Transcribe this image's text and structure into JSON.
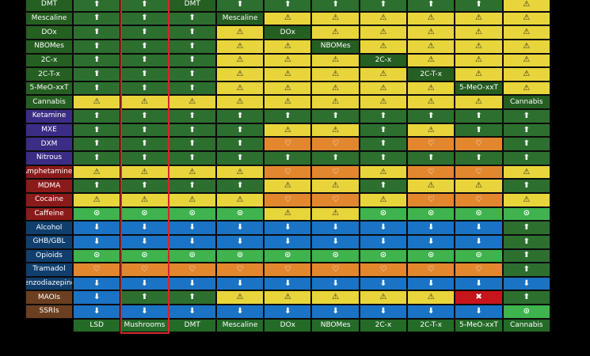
{
  "colors": {
    "low_synergy": "#2d6f2f",
    "caution": "#e8d53b",
    "unsafe": "#e2872e",
    "decrease": "#1a73c4",
    "low_no_synergy": "#3fb34d",
    "dangerous": "#c7151d",
    "self_cell": "#265f22",
    "highlight": "#d8262b"
  },
  "symbols": {
    "U": "⬆",
    "A": "⚠",
    "H": "♡",
    "D": "⬇",
    "O": "⊙",
    "X": "✖"
  },
  "columns": [
    "LSD",
    "Mushrooms",
    "DMT",
    "Mescaline",
    "DOx",
    "NBOMes",
    "2C-x",
    "2C-T-x",
    "5-MeO-xxT",
    "Cannabis"
  ],
  "highlighted_column": "Mushrooms",
  "rows": [
    {
      "label": "DMT",
      "label_color": "#265f22",
      "cells": [
        "U",
        "U",
        "S",
        "U",
        "U",
        "U",
        "U",
        "U",
        "U",
        "A"
      ]
    },
    {
      "label": "Mescaline",
      "label_color": "#265f22",
      "cells": [
        "U",
        "U",
        "U",
        "S",
        "A",
        "A",
        "A",
        "A",
        "A",
        "A"
      ]
    },
    {
      "label": "DOx",
      "label_color": "#265f22",
      "cells": [
        "U",
        "U",
        "U",
        "A",
        "S",
        "A",
        "A",
        "A",
        "A",
        "A"
      ]
    },
    {
      "label": "NBOMes",
      "label_color": "#265f22",
      "cells": [
        "U",
        "U",
        "U",
        "A",
        "A",
        "S",
        "A",
        "A",
        "A",
        "A"
      ]
    },
    {
      "label": "2C-x",
      "label_color": "#265f22",
      "cells": [
        "U",
        "U",
        "U",
        "A",
        "A",
        "A",
        "S",
        "A",
        "A",
        "A"
      ]
    },
    {
      "label": "2C-T-x",
      "label_color": "#265f22",
      "cells": [
        "U",
        "U",
        "U",
        "A",
        "A",
        "A",
        "A",
        "S",
        "A",
        "A"
      ]
    },
    {
      "label": "5-MeO-xxT",
      "label_color": "#265f22",
      "cells": [
        "U",
        "U",
        "U",
        "A",
        "A",
        "A",
        "A",
        "A",
        "S",
        "A"
      ]
    },
    {
      "label": "Cannabis",
      "label_color": "#265f22",
      "cells": [
        "A",
        "A",
        "A",
        "A",
        "A",
        "A",
        "A",
        "A",
        "A",
        "S"
      ]
    },
    {
      "label": "Ketamine",
      "label_color": "#3b2d86",
      "cells": [
        "U",
        "U",
        "U",
        "U",
        "U",
        "U",
        "U",
        "U",
        "U",
        "U"
      ]
    },
    {
      "label": "MXE",
      "label_color": "#3b2d86",
      "cells": [
        "U",
        "U",
        "U",
        "U",
        "A",
        "A",
        "U",
        "A",
        "U",
        "U"
      ]
    },
    {
      "label": "DXM",
      "label_color": "#3b2d86",
      "cells": [
        "U",
        "U",
        "U",
        "U",
        "H",
        "H",
        "U",
        "H",
        "H",
        "U"
      ]
    },
    {
      "label": "Nitrous",
      "label_color": "#3b2d86",
      "cells": [
        "U",
        "U",
        "U",
        "U",
        "U",
        "U",
        "U",
        "U",
        "U",
        "U"
      ]
    },
    {
      "label": "Amphetamines",
      "label_color": "#8b1a1a",
      "cells": [
        "A",
        "A",
        "A",
        "A",
        "H",
        "H",
        "A",
        "H",
        "H",
        "A"
      ]
    },
    {
      "label": "MDMA",
      "label_color": "#8b1a1a",
      "cells": [
        "U",
        "U",
        "U",
        "U",
        "A",
        "A",
        "U",
        "A",
        "A",
        "U"
      ]
    },
    {
      "label": "Cocaine",
      "label_color": "#8b1a1a",
      "cells": [
        "A",
        "A",
        "A",
        "A",
        "H",
        "H",
        "A",
        "H",
        "H",
        "A"
      ]
    },
    {
      "label": "Caffeine",
      "label_color": "#8b1a1a",
      "cells": [
        "O",
        "O",
        "O",
        "O",
        "A",
        "A",
        "O",
        "O",
        "O",
        "O"
      ]
    },
    {
      "label": "Alcohol",
      "label_color": "#103f6e",
      "cells": [
        "D",
        "D",
        "D",
        "D",
        "D",
        "D",
        "D",
        "D",
        "D",
        "U"
      ]
    },
    {
      "label": "GHB/GBL",
      "label_color": "#103f6e",
      "cells": [
        "D",
        "D",
        "D",
        "D",
        "D",
        "D",
        "D",
        "D",
        "D",
        "U"
      ]
    },
    {
      "label": "Opioids",
      "label_color": "#103f6e",
      "cells": [
        "O",
        "O",
        "O",
        "O",
        "O",
        "O",
        "O",
        "O",
        "O",
        "U"
      ]
    },
    {
      "label": "Tramadol",
      "label_color": "#103f6e",
      "cells": [
        "H",
        "H",
        "H",
        "H",
        "H",
        "H",
        "H",
        "H",
        "H",
        "U"
      ]
    },
    {
      "label": "Benzodiazepines",
      "label_color": "#103f6e",
      "cells": [
        "D",
        "D",
        "D",
        "D",
        "D",
        "D",
        "D",
        "D",
        "D",
        "D"
      ]
    },
    {
      "label": "MAOIs",
      "label_color": "#6b3f1f",
      "cells": [
        "D",
        "U",
        "U",
        "A",
        "A",
        "A",
        "A",
        "A",
        "X",
        "U"
      ]
    },
    {
      "label": "SSRIs",
      "label_color": "#6b3f1f",
      "cells": [
        "D",
        "D",
        "D",
        "D",
        "D",
        "D",
        "D",
        "D",
        "D",
        "O"
      ]
    }
  ]
}
